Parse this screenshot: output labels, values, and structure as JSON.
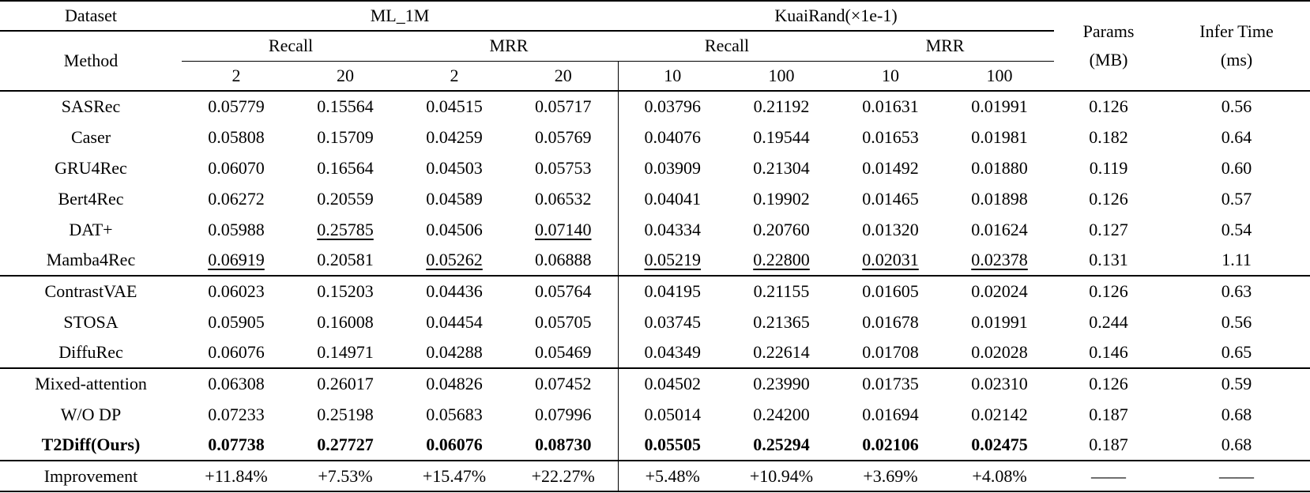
{
  "page": {
    "background": "#ffffff",
    "text_color": "#000000"
  },
  "chart_data": {
    "type": "table",
    "note": "benchmark comparison table"
  },
  "table": {
    "header": {
      "dataset": "Dataset",
      "method": "Method",
      "groups": [
        {
          "label": "ML_1M",
          "metrics": [
            "Recall",
            "MRR"
          ],
          "ks": [
            "2",
            "20",
            "2",
            "20"
          ]
        },
        {
          "label": "KuaiRand(×1e-1)",
          "metrics": [
            "Recall",
            "MRR"
          ],
          "ks": [
            "10",
            "100",
            "10",
            "100"
          ]
        }
      ],
      "params": [
        "Params",
        "(MB)"
      ],
      "infer": [
        "Infer Time",
        "(ms)"
      ]
    },
    "rows": [
      {
        "method": "SASRec",
        "values": [
          "0.05779",
          "0.15564",
          "0.04515",
          "0.05717",
          "0.03796",
          "0.21192",
          "0.01631",
          "0.01991"
        ],
        "params": "0.126",
        "infer": "0.56"
      },
      {
        "method": "Caser",
        "values": [
          "0.05808",
          "0.15709",
          "0.04259",
          "0.05769",
          "0.04076",
          "0.19544",
          "0.01653",
          "0.01981"
        ],
        "params": "0.182",
        "infer": "0.64"
      },
      {
        "method": "GRU4Rec",
        "values": [
          "0.06070",
          "0.16564",
          "0.04503",
          "0.05753",
          "0.03909",
          "0.21304",
          "0.01492",
          "0.01880"
        ],
        "params": "0.119",
        "infer": "0.60"
      },
      {
        "method": "Bert4Rec",
        "values": [
          "0.06272",
          "0.20559",
          "0.04589",
          "0.06532",
          "0.04041",
          "0.19902",
          "0.01465",
          "0.01898"
        ],
        "params": "0.126",
        "infer": "0.57"
      },
      {
        "method": "DAT+",
        "values": [
          "0.05988",
          "0.25785",
          "0.04506",
          "0.07140",
          "0.04334",
          "0.20760",
          "0.01320",
          "0.01624"
        ],
        "params": "0.127",
        "infer": "0.54",
        "underline": [
          1,
          3
        ]
      },
      {
        "method": "Mamba4Rec",
        "values": [
          "0.06919",
          "0.20581",
          "0.05262",
          "0.06888",
          "0.05219",
          "0.22800",
          "0.02031",
          "0.02378"
        ],
        "params": "0.131",
        "infer": "1.11",
        "underline": [
          0,
          2,
          4,
          5,
          6,
          7
        ],
        "section_end": true
      },
      {
        "method": "ContrastVAE",
        "values": [
          "0.06023",
          "0.15203",
          "0.04436",
          "0.05764",
          "0.04195",
          "0.21155",
          "0.01605",
          "0.02024"
        ],
        "params": "0.126",
        "infer": "0.63"
      },
      {
        "method": "STOSA",
        "values": [
          "0.05905",
          "0.16008",
          "0.04454",
          "0.05705",
          "0.03745",
          "0.21365",
          "0.01678",
          "0.01991"
        ],
        "params": "0.244",
        "infer": "0.56"
      },
      {
        "method": "DiffuRec",
        "values": [
          "0.06076",
          "0.14971",
          "0.04288",
          "0.05469",
          "0.04349",
          "0.22614",
          "0.01708",
          "0.02028"
        ],
        "params": "0.146",
        "infer": "0.65",
        "section_end": true
      },
      {
        "method": "Mixed-attention",
        "values": [
          "0.06308",
          "0.26017",
          "0.04826",
          "0.07452",
          "0.04502",
          "0.23990",
          "0.01735",
          "0.02310"
        ],
        "params": "0.126",
        "infer": "0.59"
      },
      {
        "method": "W/O DP",
        "values": [
          "0.07233",
          "0.25198",
          "0.05683",
          "0.07996",
          "0.05014",
          "0.24200",
          "0.01694",
          "0.02142"
        ],
        "params": "0.187",
        "infer": "0.68"
      },
      {
        "method": "T2Diff(Ours)",
        "values": [
          "0.07738",
          "0.27727",
          "0.06076",
          "0.08730",
          "0.05505",
          "0.25294",
          "0.02106",
          "0.02475"
        ],
        "params": "0.187",
        "infer": "0.68",
        "bold": true,
        "section_end": true
      },
      {
        "method": "Improvement",
        "values": [
          "+11.84%",
          "+7.53%",
          "+15.47%",
          "+22.27%",
          "+5.48%",
          "+10.94%",
          "+3.69%",
          "+4.08%"
        ],
        "params": "——",
        "infer": "——"
      }
    ]
  }
}
